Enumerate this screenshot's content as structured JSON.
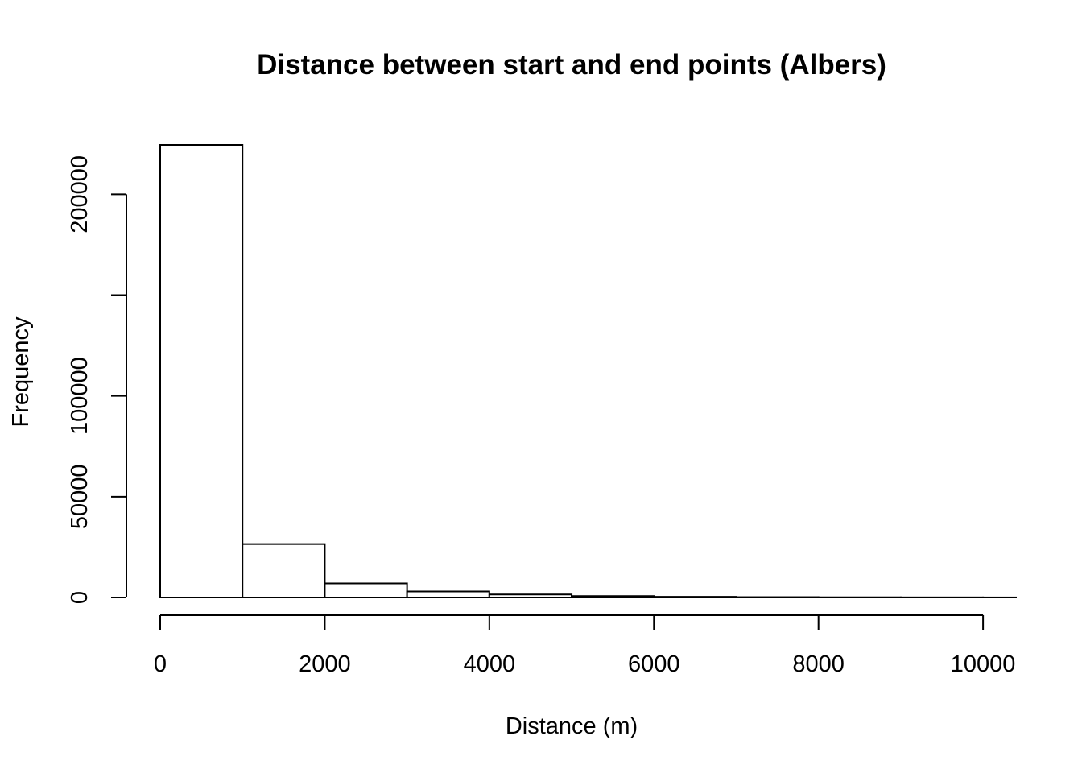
{
  "chart_data": {
    "type": "bar",
    "title": "Distance between start and end points (Albers)",
    "xlabel": "Distance (m)",
    "ylabel": "Frequency",
    "bins": [
      {
        "start": 0,
        "end": 1000,
        "count": 224500
      },
      {
        "start": 1000,
        "end": 2000,
        "count": 26500
      },
      {
        "start": 2000,
        "end": 3000,
        "count": 7000
      },
      {
        "start": 3000,
        "end": 4000,
        "count": 3000
      },
      {
        "start": 4000,
        "end": 5000,
        "count": 1500
      },
      {
        "start": 5000,
        "end": 6000,
        "count": 700
      },
      {
        "start": 6000,
        "end": 7000,
        "count": 350
      },
      {
        "start": 7000,
        "end": 8000,
        "count": 180
      },
      {
        "start": 8000,
        "end": 9000,
        "count": 100
      },
      {
        "start": 9000,
        "end": 10000,
        "count": 60
      },
      {
        "start": 10000,
        "end": 10400,
        "count": 30
      }
    ],
    "xlim": [
      0,
      10400
    ],
    "ylim": [
      0,
      224500
    ],
    "x_ticks": [
      0,
      2000,
      4000,
      6000,
      8000,
      10000
    ],
    "x_tick_labels": [
      "0",
      "2000",
      "4000",
      "6000",
      "8000",
      "10000"
    ],
    "y_ticks": [
      0,
      50000,
      100000,
      150000,
      200000
    ],
    "y_tick_labels": [
      "0",
      "50000",
      "100000",
      "",
      "200000"
    ],
    "grid": false,
    "legend": "none",
    "bar_fill": "#ffffff",
    "bar_stroke": "#000000"
  }
}
